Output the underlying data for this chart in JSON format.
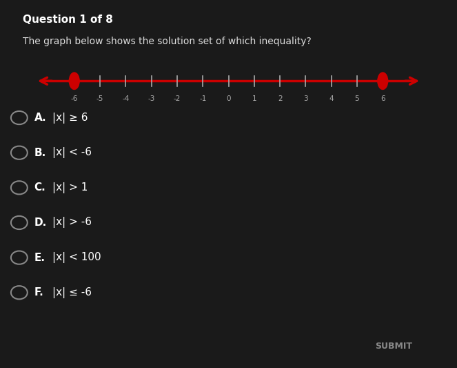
{
  "background_color": "#1a1a1a",
  "title_text": "Question 1 of 8",
  "subtitle_text": "The graph below shows the solution set of which inequality?",
  "title_color": "#ffffff",
  "subtitle_color": "#dddddd",
  "title_fontsize": 11,
  "subtitle_fontsize": 10,
  "number_line": {
    "xmin": -7.5,
    "xmax": 7.5,
    "y": 0,
    "tick_positions": [
      -6,
      -5,
      -4,
      -3,
      -2,
      -1,
      0,
      1,
      2,
      3,
      4,
      5,
      6
    ],
    "tick_labels": [
      "-6",
      "-5",
      "-4",
      "-3",
      "-2",
      "-1",
      "0",
      "1",
      "2",
      "3",
      "4",
      "5",
      "6"
    ],
    "open_circles": [
      -6,
      6
    ],
    "shading_left": true,
    "shading_right": true,
    "line_color": "#cc0000",
    "circle_color": "#cc0000",
    "circle_facecolor": "#1a1a1a",
    "arrow_color": "#cc0000"
  },
  "choices": [
    {
      "label": "A.",
      "text": "|x| ≥ 6"
    },
    {
      "label": "B.",
      "text": "|x| < -6"
    },
    {
      "label": "C.",
      "text": "|x| > 1"
    },
    {
      "label": "D.",
      "text": "|x| > -6"
    },
    {
      "label": "E.",
      "text": "|x| < 100"
    },
    {
      "label": "F.",
      "text": "|x| ≤ -6"
    }
  ],
  "choices_color": "#ffffff",
  "choices_fontsize": 11,
  "submit_text": "SUBMIT",
  "submit_color": "#888888",
  "submit_fontsize": 9
}
